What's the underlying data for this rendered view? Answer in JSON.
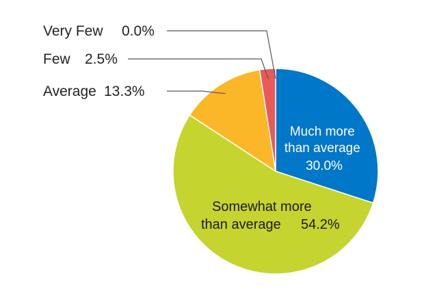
{
  "chart_data": {
    "type": "pie",
    "start": "top",
    "direction": "clockwise",
    "slices": [
      {
        "label_lines": [
          "Much more",
          "than average"
        ],
        "value_text": "30.0%",
        "value": 30.0,
        "color": "#0077c8",
        "label_position": "inside"
      },
      {
        "label_lines": [
          "Somewhat more",
          "than average"
        ],
        "value_text": "54.2%",
        "value": 54.2,
        "color": "#c5d42f",
        "label_position": "inside"
      },
      {
        "label_lines": [
          "Average"
        ],
        "value_text": "13.3%",
        "value": 13.3,
        "color": "#fbb727",
        "label_position": "outside-left"
      },
      {
        "label_lines": [
          "Few"
        ],
        "value_text": "2.5%",
        "value": 2.5,
        "color": "#e85a5a",
        "label_position": "outside-left"
      },
      {
        "label_lines": [
          "Very Few"
        ],
        "value_text": "0.0%",
        "value": 0.0,
        "color": "#d9d9d9",
        "label_position": "outside-left"
      }
    ]
  }
}
